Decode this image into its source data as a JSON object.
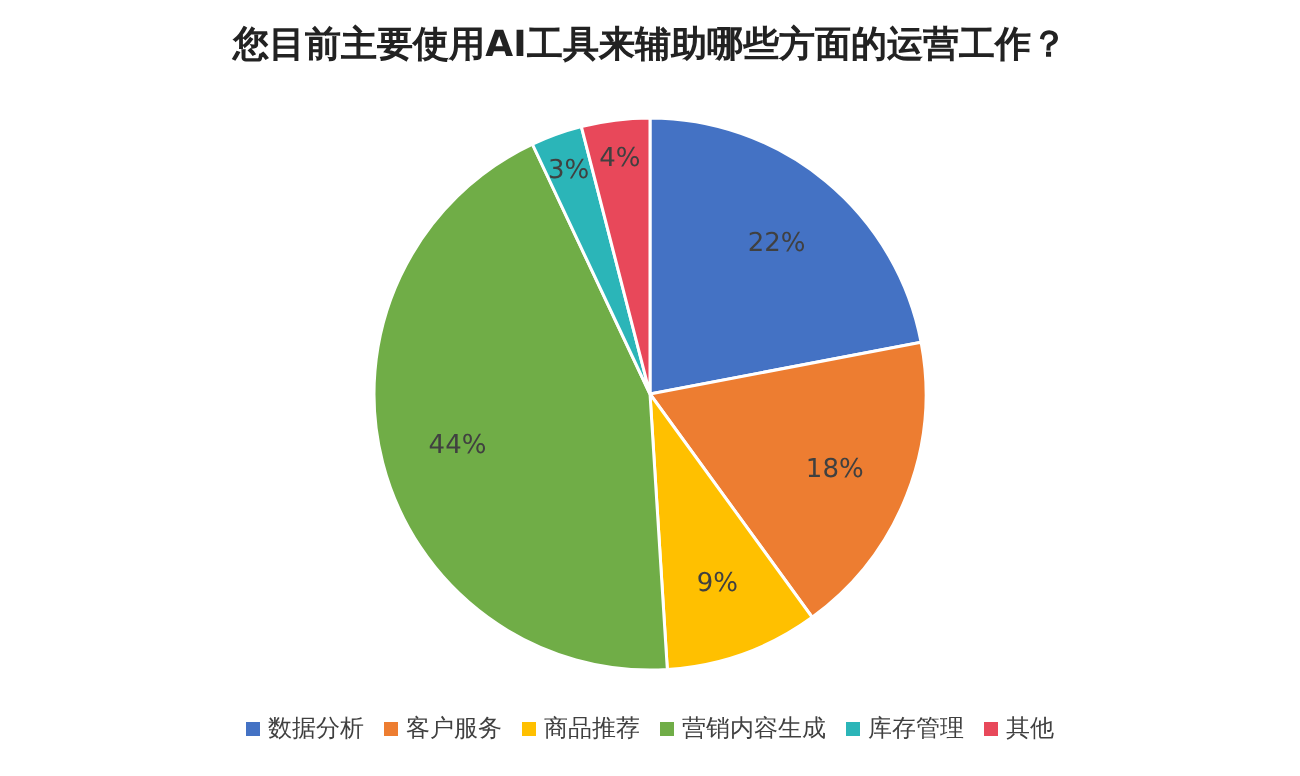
{
  "chart_data": {
    "type": "pie",
    "title": "您目前主要使用AI工具来辅助哪些方面的运营工作？",
    "categories": [
      "数据分析",
      "客户服务",
      "商品推荐",
      "营销内容生成",
      "库存管理",
      "其他"
    ],
    "values": [
      22,
      18,
      9,
      44,
      3,
      4
    ],
    "colors": [
      "#4472c4",
      "#ed7d31",
      "#ffc000",
      "#70ad47",
      "#2bb5b8",
      "#e8485a"
    ],
    "value_labels": [
      "22%",
      "18%",
      "9%",
      "44%",
      "3%",
      "4%"
    ],
    "legend": "bottom"
  }
}
